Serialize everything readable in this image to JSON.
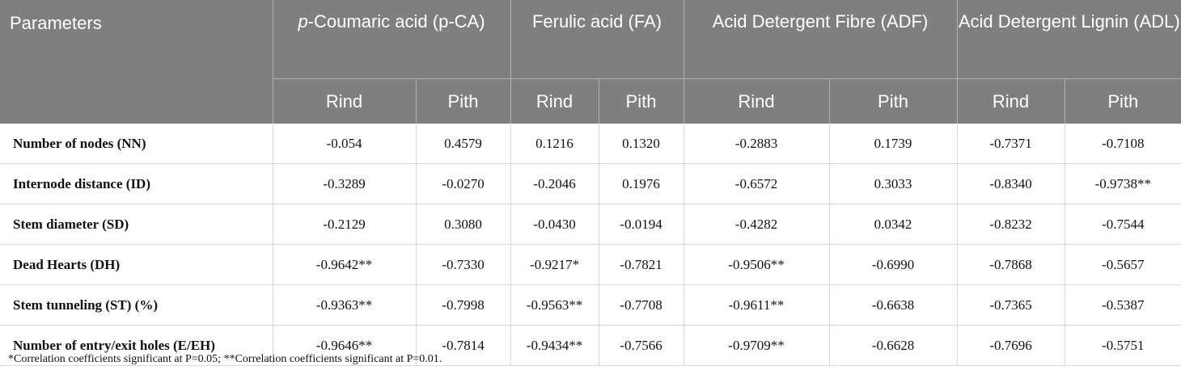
{
  "table": {
    "header": {
      "first": "Parameters",
      "groups": [
        {
          "italic": "p",
          "text": "-Coumaric acid (p-CA)"
        },
        {
          "text": "Ferulic acid (FA)"
        },
        {
          "text": "Acid Detergent Fibre (ADF)"
        },
        {
          "text": "Acid Detergent Lignin (ADL)"
        }
      ],
      "sub": [
        "Rind",
        "Pith",
        "Rind",
        "Pith",
        "Rind",
        "Pith",
        "Rind",
        "Pith"
      ]
    },
    "rows": [
      [
        "Number of nodes (NN)",
        "-0.054",
        "0.4579",
        "0.1216",
        "0.1320",
        "-0.2883",
        "0.1739",
        "-0.7371",
        "-0.7108"
      ],
      [
        "Internode distance (ID)",
        "-0.3289",
        "-0.0270",
        "-0.2046",
        "0.1976",
        "-0.6572",
        "0.3033",
        "-0.8340",
        "-0.9738**"
      ],
      [
        "Stem diameter (SD)",
        "-0.2129",
        "0.3080",
        "-0.0430",
        "-0.0194",
        "-0.4282",
        "0.0342",
        "-0.8232",
        "-0.7544"
      ],
      [
        "Dead Hearts (DH)",
        "-0.9642**",
        "-0.7330",
        "-0.9217*",
        "-0.7821",
        "-0.9506**",
        "-0.6990",
        "-0.7868",
        "-0.5657"
      ],
      [
        "Stem tunneling (ST) (%)",
        "-0.9363**",
        "-0.7998",
        "-0.9563**",
        "-0.7708",
        "-0.9611**",
        "-0.6638",
        "-0.7365",
        "-0.5387"
      ],
      [
        "Number of entry/exit holes (E/EH)",
        "-0.9646**",
        "-0.7814",
        "-0.9434**",
        "-0.7566",
        "-0.9709**",
        "-0.6628",
        "-0.7696",
        "-0.5751"
      ]
    ],
    "footnote": "*Correlation coefficients significant at P=0.05; **Correlation coefficients significant at P=0.01."
  }
}
